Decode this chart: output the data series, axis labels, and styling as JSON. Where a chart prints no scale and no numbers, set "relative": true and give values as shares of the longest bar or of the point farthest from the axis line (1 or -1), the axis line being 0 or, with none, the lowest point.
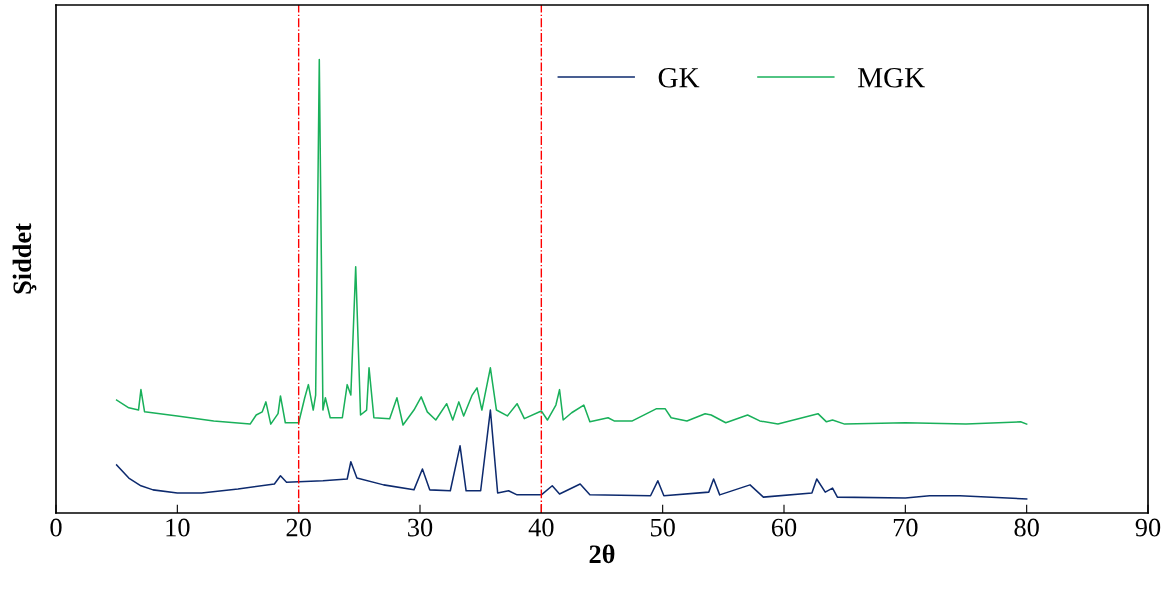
{
  "chart_data": {
    "type": "line",
    "xlabel": "2θ",
    "ylabel": "Şiddet",
    "relative": true,
    "xlim": [
      0,
      90
    ],
    "xticks": [
      0,
      10,
      20,
      30,
      40,
      50,
      60,
      70,
      80,
      90
    ],
    "tick_labels": "x",
    "grid": false,
    "legend": "top right",
    "marker": "none",
    "line_style": "solid",
    "series": [
      {
        "name": "GK",
        "color": "#0d2a6e",
        "x": [
          5,
          6,
          7,
          8,
          10,
          12,
          15,
          18,
          18.5,
          19,
          22,
          24,
          24.3,
          24.8,
          27,
          29.5,
          30.2,
          30.8,
          32.5,
          33.3,
          33.8,
          35,
          35.8,
          36.4,
          37.3,
          38,
          40,
          40.9,
          41.5,
          43.2,
          44,
          49,
          49.6,
          50.1,
          53.8,
          54.2,
          54.7,
          57.2,
          58.3,
          62.3,
          62.7,
          63.4,
          64,
          64.4,
          70,
          72,
          74.5,
          80
        ],
        "values": [
          0.106,
          0.077,
          0.06,
          0.051,
          0.044,
          0.044,
          0.053,
          0.064,
          0.082,
          0.068,
          0.071,
          0.075,
          0.113,
          0.077,
          0.062,
          0.051,
          0.097,
          0.051,
          0.049,
          0.148,
          0.049,
          0.049,
          0.227,
          0.044,
          0.049,
          0.04,
          0.04,
          0.06,
          0.042,
          0.064,
          0.04,
          0.038,
          0.071,
          0.038,
          0.046,
          0.075,
          0.04,
          0.062,
          0.035,
          0.044,
          0.075,
          0.046,
          0.055,
          0.035,
          0.033,
          0.038,
          0.038,
          0.031
        ]
      },
      {
        "name": "MGK",
        "color": "#19b05a",
        "x": [
          5,
          6,
          6.8,
          7,
          7.3,
          10,
          13,
          16,
          16.5,
          17,
          17.3,
          17.7,
          18.3,
          18.5,
          18.9,
          20,
          20.5,
          20.8,
          21.2,
          21.4,
          21.7,
          22,
          22.2,
          22.6,
          23.6,
          24,
          24.3,
          24.7,
          25.1,
          25.6,
          25.8,
          26.2,
          27.5,
          28.1,
          28.6,
          29.5,
          30.1,
          30.6,
          31.3,
          32.2,
          32.7,
          33.2,
          33.6,
          34.3,
          34.7,
          35.1,
          35.8,
          36.3,
          37.2,
          38,
          38.6,
          40,
          40.5,
          41.2,
          41.5,
          41.8,
          42.5,
          43.5,
          44,
          45.5,
          46,
          47.5,
          49.5,
          50.2,
          50.7,
          52,
          53.5,
          54,
          55.2,
          57,
          58,
          59.5,
          62.8,
          63.5,
          64,
          65,
          70,
          75,
          79.5,
          80
        ],
        "values": [
          0.249,
          0.232,
          0.227,
          0.272,
          0.223,
          0.214,
          0.203,
          0.196,
          0.216,
          0.223,
          0.245,
          0.196,
          0.219,
          0.258,
          0.199,
          0.199,
          0.254,
          0.283,
          0.227,
          0.26,
          1.0,
          0.227,
          0.254,
          0.21,
          0.21,
          0.283,
          0.26,
          0.543,
          0.216,
          0.227,
          0.32,
          0.21,
          0.208,
          0.254,
          0.194,
          0.227,
          0.256,
          0.223,
          0.205,
          0.241,
          0.205,
          0.245,
          0.214,
          0.26,
          0.276,
          0.227,
          0.32,
          0.227,
          0.214,
          0.241,
          0.208,
          0.225,
          0.205,
          0.238,
          0.272,
          0.205,
          0.221,
          0.238,
          0.201,
          0.21,
          0.203,
          0.203,
          0.23,
          0.23,
          0.21,
          0.203,
          0.219,
          0.216,
          0.199,
          0.216,
          0.203,
          0.196,
          0.219,
          0.201,
          0.205,
          0.196,
          0.199,
          0.196,
          0.201,
          0.196
        ]
      }
    ],
    "ref_lines": [
      {
        "axis": "x",
        "value": 20,
        "color": "#ff0000",
        "line_style": "dashdot"
      },
      {
        "axis": "x",
        "value": 40,
        "color": "#ff0000",
        "line_style": "dashdot"
      }
    ]
  }
}
